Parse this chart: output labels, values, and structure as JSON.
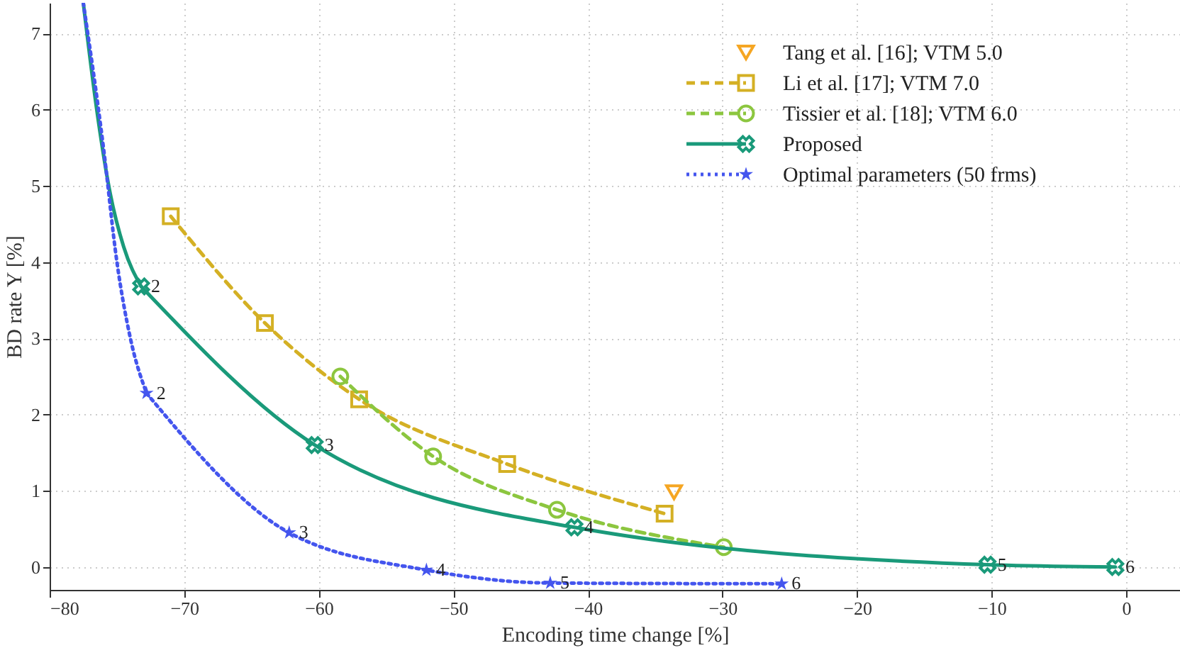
{
  "chart_data": {
    "type": "line",
    "xlabel": "Encoding time change [%]",
    "ylabel": "BD rate Y [%]",
    "xlim": [
      -80,
      4
    ],
    "xticks": [
      -80,
      -70,
      -60,
      -50,
      -40,
      -30,
      -20,
      -10,
      0
    ],
    "ylim": [
      -0.3,
      7.4
    ],
    "yticks": [
      0,
      1,
      2,
      3,
      4,
      5,
      6,
      7
    ],
    "grid": true,
    "legend": "top right",
    "series": [
      {
        "name": "Tang et al. [16]; VTM 5.0",
        "type": "scatter",
        "color": "#f5a623",
        "marker": "triangle",
        "x": [
          -33.6
        ],
        "values": [
          0.98
        ]
      },
      {
        "name": "Li et al. [17]; VTM 7.0",
        "color": "#d4b024",
        "marker": "square",
        "line_style": "dashed",
        "x": [
          -71,
          -64,
          -57,
          -46,
          -34.3
        ],
        "values": [
          4.6,
          3.2,
          2.2,
          1.35,
          0.7
        ]
      },
      {
        "name": "Tissier et al. [18]; VTM 6.0",
        "color": "#8cc63f",
        "marker": "circle",
        "line_style": "dashed",
        "x": [
          -58.4,
          -51.5,
          -42.3,
          -29.9
        ],
        "values": [
          2.5,
          1.45,
          0.75,
          0.26
        ]
      },
      {
        "color": "#1a9a7a",
        "marker": "none",
        "line_style": "solid",
        "x": [
          -77.5,
          -76.5,
          -75.5,
          -74.5,
          -73.2
        ],
        "values": [
          7.4,
          6.0,
          4.9,
          4.2,
          3.68
        ]
      },
      {
        "name": "Proposed",
        "color": "#1a9a7a",
        "marker": "cross",
        "line_style": "solid",
        "x": [
          -73.2,
          -60.3,
          -41,
          -10.3,
          -0.8
        ],
        "values": [
          3.68,
          1.6,
          0.52,
          0.03,
          0.0
        ]
      },
      {
        "color": "#4455ee",
        "marker": "none",
        "line_style": "dotted",
        "x": [
          -77.5,
          -76,
          -75,
          -74,
          -72.8
        ],
        "values": [
          7.4,
          5.5,
          4.0,
          3.0,
          2.28
        ]
      },
      {
        "name": "Optimal parameters (50 frms)",
        "color": "#4455ee",
        "marker": "star",
        "line_style": "dotted",
        "x": [
          -72.8,
          -62.2,
          -52,
          -42.8,
          -25.6
        ],
        "values": [
          2.28,
          0.45,
          -0.04,
          -0.21,
          -0.22
        ]
      }
    ],
    "annotations": [
      {
        "text": "2",
        "x": -73.2,
        "y": 3.68
      },
      {
        "text": "3",
        "x": -60.3,
        "y": 1.6
      },
      {
        "text": "4",
        "x": -41,
        "y": 0.52
      },
      {
        "text": "5",
        "x": -10.3,
        "y": 0.03
      },
      {
        "text": "6",
        "x": -0.8,
        "y": 0.0
      },
      {
        "text": "2",
        "x": -72.8,
        "y": 2.28
      },
      {
        "text": "3",
        "x": -62.2,
        "y": 0.45
      },
      {
        "text": "4",
        "x": -52,
        "y": -0.04
      },
      {
        "text": "5",
        "x": -42.8,
        "y": -0.21
      },
      {
        "text": "6",
        "x": -25.6,
        "y": -0.22
      }
    ]
  }
}
